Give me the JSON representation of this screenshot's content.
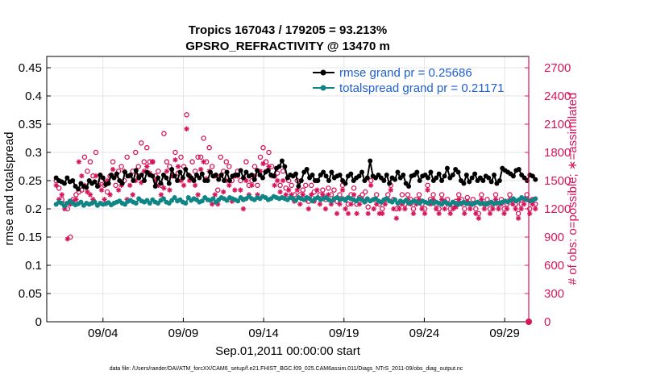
{
  "chart_data": {
    "type": "line",
    "title_line1": "Tropics 167043 / 179205 = 93.213%",
    "title_line2": "GPSRO_REFRACTIVITY @ 13470 m",
    "xlabel": "Sep.01,2011 00:00:00 start",
    "ylabel_left": "rmse and totalspread",
    "ylabel_right": "# of obs: o=possible; ∗=assimilated",
    "footnote": "data file: /Users/raeder/DAI/ATM_forcXX/CAM6_setup/f.e21.FHIST_BGC.f09_025.CAM6assim.011/Diags_NTrS_2011-09/obs_diag_output.nc",
    "xlim": [
      0.5,
      30.5
    ],
    "ylim_left": [
      0,
      0.47
    ],
    "ylim_right": [
      0,
      2820
    ],
    "x_ticks": [
      4,
      9,
      14,
      19,
      24,
      29
    ],
    "x_tick_labels": [
      "09/04",
      "09/09",
      "09/14",
      "09/19",
      "09/24",
      "09/29"
    ],
    "y_ticks_left": [
      "0",
      "0.05",
      "0.1",
      "0.15",
      "0.2",
      "0.25",
      "0.3",
      "0.35",
      "0.4",
      "0.45"
    ],
    "y_ticks_right": [
      "0",
      "300",
      "600",
      "900",
      "1200",
      "1500",
      "1800",
      "2100",
      "2400",
      "2700"
    ],
    "grid": true,
    "legend_position": "top-right",
    "colors": {
      "rmse": "#000000",
      "spread": "#0f8585",
      "obs": "#d6155a",
      "legend_text": "#1f5fd1"
    },
    "series": [
      {
        "name": "rmse grand pr = 0.25686",
        "axis": "left",
        "marker": "filled-circle",
        "values": [
          0.255,
          0.25,
          0.248,
          0.245,
          0.255,
          0.248,
          0.25,
          0.24,
          0.235,
          0.245,
          0.24,
          0.238,
          0.25,
          0.245,
          0.248,
          0.24,
          0.26,
          0.255,
          0.243,
          0.245,
          0.26,
          0.255,
          0.262,
          0.25,
          0.245,
          0.265,
          0.258,
          0.26,
          0.25,
          0.268,
          0.255,
          0.26,
          0.25,
          0.265,
          0.26,
          0.258,
          0.24,
          0.255,
          0.245,
          0.26,
          0.255,
          0.245,
          0.27,
          0.258,
          0.25,
          0.265,
          0.255,
          0.27,
          0.26,
          0.255,
          0.25,
          0.26,
          0.255,
          0.262,
          0.25,
          0.25,
          0.265,
          0.258,
          0.26,
          0.252,
          0.26,
          0.25,
          0.265,
          0.25,
          0.258,
          0.26,
          0.26,
          0.268,
          0.255,
          0.265,
          0.258,
          0.26,
          0.252,
          0.268,
          0.26,
          0.255,
          0.265,
          0.268,
          0.26,
          0.258,
          0.272,
          0.275,
          0.285,
          0.275,
          0.255,
          0.26,
          0.258,
          0.262,
          0.24,
          0.25,
          0.265,
          0.27,
          0.255,
          0.26,
          0.25,
          0.25,
          0.26,
          0.265,
          0.258,
          0.25,
          0.265,
          0.255,
          0.258,
          0.26,
          0.25,
          0.245,
          0.258,
          0.262,
          0.25,
          0.255,
          0.258,
          0.265,
          0.25,
          0.255,
          0.285,
          0.258,
          0.255,
          0.26,
          0.255,
          0.25,
          0.26,
          0.245,
          0.255,
          0.252,
          0.265,
          0.255,
          0.26,
          0.245,
          0.24,
          0.258,
          0.26,
          0.265,
          0.25,
          0.258,
          0.26,
          0.255,
          0.265,
          0.25,
          0.255,
          0.262,
          0.25,
          0.258,
          0.272,
          0.255,
          0.26,
          0.27,
          0.265,
          0.25,
          0.245,
          0.26,
          0.248,
          0.255,
          0.262,
          0.25,
          0.255,
          0.25,
          0.258,
          0.255,
          0.248,
          0.26,
          0.245,
          0.25,
          0.272,
          0.268,
          0.265,
          0.262,
          0.258,
          0.268,
          0.27,
          0.26,
          0.255,
          0.25,
          0.26,
          0.258,
          0.252
        ]
      },
      {
        "name": "totalspread grand pr = 0.21171",
        "axis": "left",
        "marker": "filled-circle",
        "values": [
          0.208,
          0.212,
          0.21,
          0.205,
          0.21,
          0.214,
          0.21,
          0.207,
          0.209,
          0.212,
          0.206,
          0.21,
          0.208,
          0.21,
          0.212,
          0.206,
          0.21,
          0.208,
          0.209,
          0.211,
          0.207,
          0.21,
          0.212,
          0.214,
          0.21,
          0.208,
          0.213,
          0.215,
          0.212,
          0.21,
          0.218,
          0.214,
          0.212,
          0.215,
          0.21,
          0.216,
          0.212,
          0.21,
          0.215,
          0.218,
          0.212,
          0.21,
          0.215,
          0.22,
          0.214,
          0.216,
          0.212,
          0.21,
          0.22,
          0.215,
          0.218,
          0.216,
          0.212,
          0.214,
          0.22,
          0.216,
          0.215,
          0.218,
          0.212,
          0.216,
          0.22,
          0.218,
          0.215,
          0.22,
          0.218,
          0.216,
          0.214,
          0.22,
          0.216,
          0.218,
          0.222,
          0.218,
          0.216,
          0.22,
          0.218,
          0.222,
          0.22,
          0.216,
          0.218,
          0.222,
          0.22,
          0.218,
          0.22,
          0.218,
          0.216,
          0.22,
          0.218,
          0.215,
          0.22,
          0.218,
          0.216,
          0.22,
          0.218,
          0.214,
          0.218,
          0.22,
          0.216,
          0.218,
          0.22,
          0.216,
          0.214,
          0.218,
          0.22,
          0.216,
          0.218,
          0.215,
          0.22,
          0.218,
          0.216,
          0.214,
          0.218,
          0.216,
          0.212,
          0.218,
          0.214,
          0.216,
          0.218,
          0.214,
          0.212,
          0.216,
          0.218,
          0.214,
          0.212,
          0.216,
          0.21,
          0.214,
          0.212,
          0.215,
          0.21,
          0.212,
          0.214,
          0.212,
          0.21,
          0.214,
          0.212,
          0.21,
          0.213,
          0.21,
          0.212,
          0.21,
          0.208,
          0.212,
          0.21,
          0.208,
          0.212,
          0.21,
          0.208,
          0.21,
          0.212,
          0.209,
          0.21,
          0.208,
          0.21,
          0.212,
          0.209,
          0.21,
          0.208,
          0.21,
          0.212,
          0.209,
          0.211,
          0.21,
          0.212,
          0.214,
          0.212,
          0.215,
          0.218,
          0.214,
          0.216,
          0.22,
          0.218,
          0.216,
          0.214,
          0.215,
          0.218
        ]
      },
      {
        "name": "obs possible",
        "axis": "right",
        "marker": "open-circle",
        "values": [
          1500,
          1420,
          1300,
          1250,
          1200,
          900,
          1300,
          1350,
          1380,
          1400,
          1750,
          1600,
          1700,
          1550,
          1800,
          1450,
          1500,
          1450,
          1380,
          1550,
          1700,
          1450,
          1600,
          1650,
          1500,
          1750,
          1550,
          1600,
          1800,
          1650,
          1900,
          1700,
          1850,
          1700,
          1700,
          1550,
          1600,
          1450,
          2000,
          1700,
          1650,
          1550,
          1800,
          1580,
          1750,
          1650,
          2200,
          1550,
          1700,
          1600,
          1750,
          1750,
          1950,
          1700,
          1850,
          1650,
          1550,
          1400,
          1750,
          1600,
          1700,
          1650,
          1500,
          1550,
          1600,
          1500,
          1300,
          1700,
          1450,
          1500,
          1650,
          1450,
          1750,
          1850,
          1700,
          1800,
          1650,
          1550,
          1580,
          1450,
          1600,
          1420,
          1500,
          1450,
          1350,
          1500,
          1350,
          1400,
          1450,
          1280,
          1450,
          1380,
          1500,
          1350,
          1400,
          1300,
          1420,
          1350,
          1400,
          1280,
          1350,
          1450,
          1300,
          1250,
          1350,
          1420,
          1250,
          1320,
          1350,
          1380,
          1220,
          1500,
          1300,
          1350,
          1250,
          1200,
          1300,
          1350,
          1450,
          1300,
          1200,
          1250,
          1350,
          1250,
          1350,
          1300,
          1200,
          1300,
          1350,
          1250,
          1200,
          1450,
          1300,
          1350,
          1250,
          1200,
          1350,
          1280,
          1300,
          1200,
          1250,
          1280,
          1350,
          1300,
          1200,
          1320,
          1250,
          1300,
          1200,
          1150,
          1350,
          1250,
          1300,
          1200,
          1250,
          1350,
          1250,
          1300,
          1200,
          1250,
          1350,
          1300,
          1250,
          1150,
          1250,
          1300,
          1350,
          1200,
          1300,
          1250
        ]
      },
      {
        "name": "obs assimilated",
        "axis": "right",
        "marker": "asterisk",
        "values": [
          1450,
          1300,
          1350,
          1200,
          880,
          1250,
          1280,
          1300,
          1700,
          1550,
          1450,
          1380,
          1350,
          1300,
          1550,
          1450,
          1400,
          1300,
          1500,
          1350,
          1620,
          1550,
          1400,
          1450,
          1600,
          1300,
          1450,
          1350,
          1500,
          1550,
          1480,
          1600,
          1650,
          1580,
          1700,
          1500,
          1450,
          1350,
          1420,
          1600,
          1400,
          1550,
          1720,
          1650,
          1500,
          1450,
          2050,
          1500,
          1520,
          1450,
          1350,
          1620,
          1700,
          1520,
          1600,
          1250,
          1350,
          1250,
          1550,
          1380,
          1500,
          1450,
          1280,
          1400,
          1550,
          1400,
          1200,
          1500,
          1350,
          1450,
          1550,
          1350,
          1600,
          1680,
          1600,
          1650,
          1550,
          1450,
          1500,
          1380,
          1500,
          1350,
          1400,
          1350,
          1280,
          1400,
          1250,
          1350,
          1300,
          1200,
          1350,
          1280,
          1400,
          1250,
          1350,
          1200,
          1350,
          1250,
          1300,
          1150,
          1250,
          1400,
          1200,
          1150,
          1250,
          1350,
          1150,
          1250,
          1300,
          1280,
          1150,
          1450,
          1200,
          1250,
          1150,
          1150,
          1250,
          1300,
          1400,
          1200,
          1100,
          1200,
          1250,
          1200,
          1300,
          1250,
          1150,
          1250,
          1300,
          1200,
          1150,
          1400,
          1250,
          1300,
          1200,
          1150,
          1300,
          1200,
          1250,
          1150,
          1200,
          1220,
          1300,
          1250,
          1150,
          1280,
          1200,
          1250,
          1150,
          1100,
          1300,
          1200,
          1250,
          1150,
          1200,
          1300,
          1200,
          1250,
          1150,
          1200,
          1300,
          1250,
          1200,
          1100,
          1200,
          1250,
          1300,
          1150,
          1250,
          1200
        ]
      }
    ]
  }
}
